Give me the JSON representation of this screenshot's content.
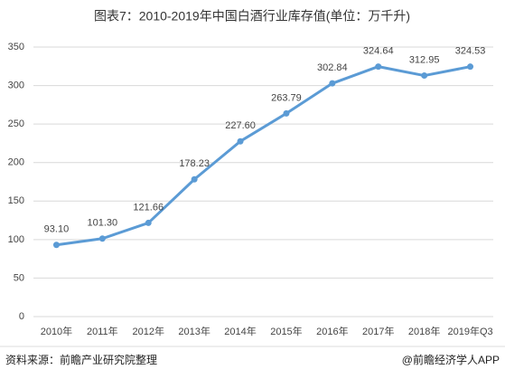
{
  "chart_data": {
    "type": "line",
    "title": "图表7：2010-2019年中国白酒行业库存值(单位：万千升)",
    "categories": [
      "2010年",
      "2011年",
      "2012年",
      "2013年",
      "2014年",
      "2015年",
      "2016年",
      "2017年",
      "2018年",
      "2019年Q3"
    ],
    "values": [
      93.1,
      101.3,
      121.66,
      178.23,
      227.6,
      263.79,
      302.84,
      324.64,
      312.95,
      324.53
    ],
    "value_labels": [
      "93.10",
      "101.30",
      "121.66",
      "178.23",
      "227.60",
      "263.79",
      "302.84",
      "324.64",
      "312.95",
      "324.53"
    ],
    "color": "#5b9bd5",
    "ylim": [
      0,
      350
    ],
    "yticks": [
      0,
      50,
      100,
      150,
      200,
      250,
      300,
      350
    ],
    "grid": true
  },
  "footer": {
    "source": "资料来源：前瞻产业研究院整理",
    "brand": "@前瞻经济学人APP"
  }
}
